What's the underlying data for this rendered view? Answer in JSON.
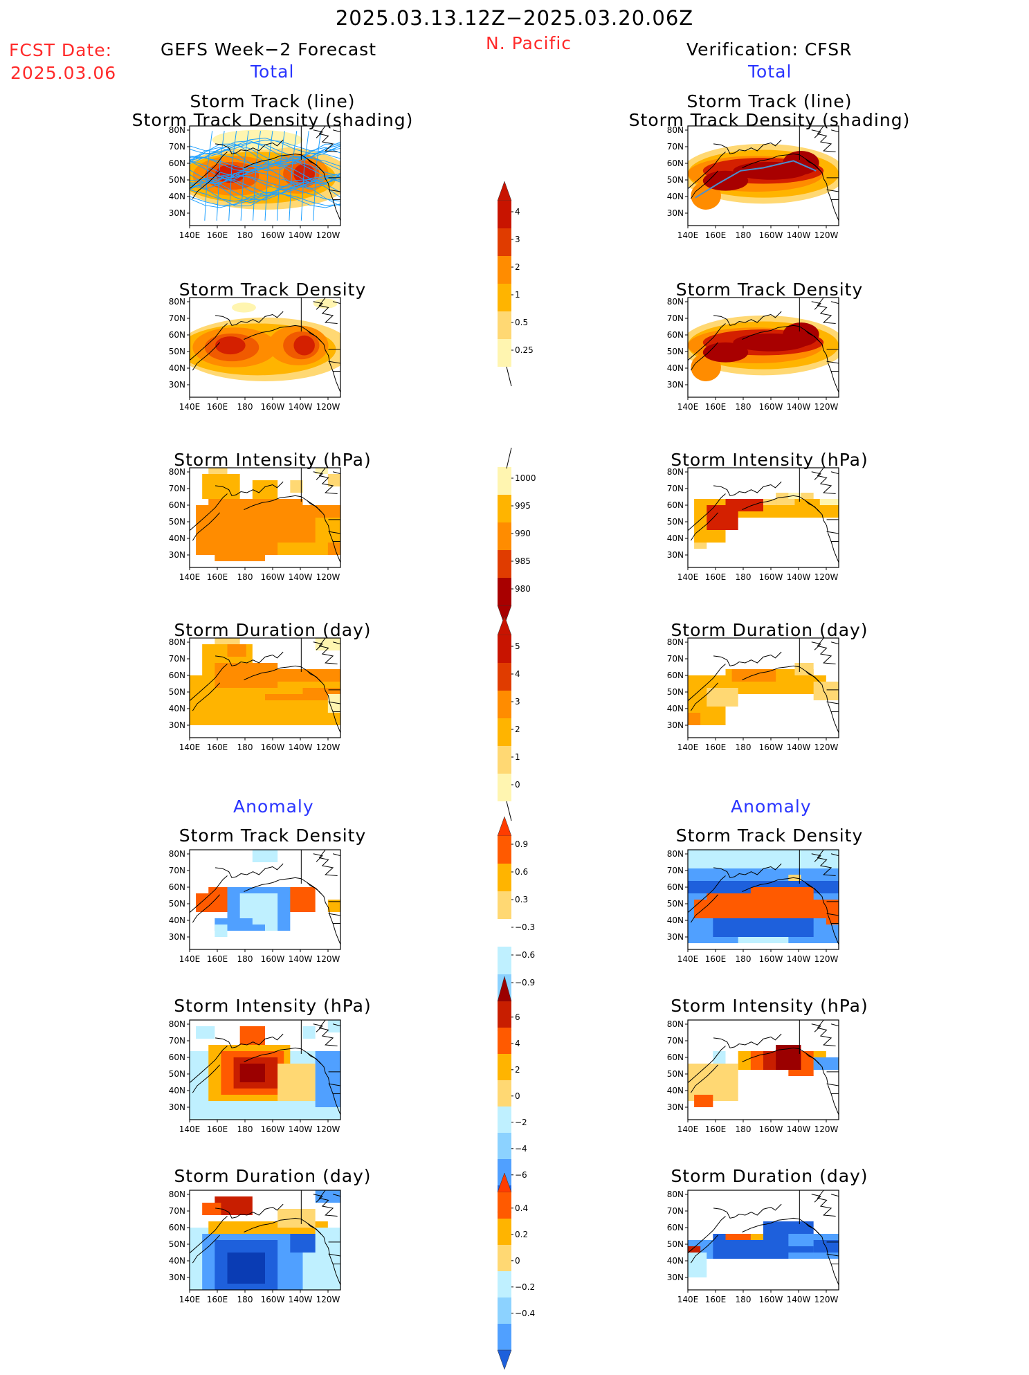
{
  "header": {
    "period": "2025.03.13.12Z−2025.03.20.06Z",
    "region": "N. Pacific",
    "fcst_label": "FCST Date:",
    "fcst_date": "2025.03.06",
    "left_title": "GEFS Week−2 Forecast",
    "right_title": "Verification: CFSR",
    "left_total": "Total",
    "right_total": "Total",
    "left_anomaly": "Anomaly",
    "right_anomaly": "Anomaly"
  },
  "axes": {
    "x_ticks": [
      "140E",
      "160E",
      "180",
      "160W",
      "140W",
      "120W"
    ],
    "y_ticks": [
      "80N",
      "70N",
      "60N",
      "50N",
      "40N",
      "30N"
    ]
  },
  "panel_titles": {
    "track_line": "Storm Track (line)",
    "track_shading": "Storm Track Density (shading)",
    "density": "Storm Track Density",
    "intensity": "Storm Intensity (hPa)",
    "duration": "Storm Duration (day)"
  },
  "colorbars": {
    "density": [
      "4",
      "3",
      "2",
      "1",
      "0.5",
      "0.25"
    ],
    "intensity": [
      "1000",
      "995",
      "990",
      "985",
      "980"
    ],
    "duration": [
      "5",
      "4",
      "3",
      "2",
      "1",
      "0"
    ],
    "density_anom": [
      "0.9",
      "0.6",
      "0.3",
      "−0.3",
      "−0.6",
      "−0.9"
    ],
    "intensity_anom": [
      "6",
      "4",
      "2",
      "0",
      "−2",
      "−4",
      "−6"
    ],
    "duration_anom": [
      "0.4",
      "0.2",
      "0",
      "−0.2",
      "−0.4"
    ]
  },
  "colors": {
    "title_red": "#ff2a2a",
    "title_blue": "#2a35ff",
    "seq": [
      "#fff5b0",
      "#ffd873",
      "#ffb400",
      "#ff8c00",
      "#f05a00",
      "#d42000",
      "#a80000"
    ],
    "div_warm": [
      "#ffd873",
      "#ffb400",
      "#ff5a00",
      "#c81e00",
      "#9b0000"
    ],
    "div_cool": [
      "#bff0ff",
      "#8cd2ff",
      "#50a0ff",
      "#1e60dc",
      "#0a3cb4"
    ],
    "track_line": "#1ea0ff"
  }
}
